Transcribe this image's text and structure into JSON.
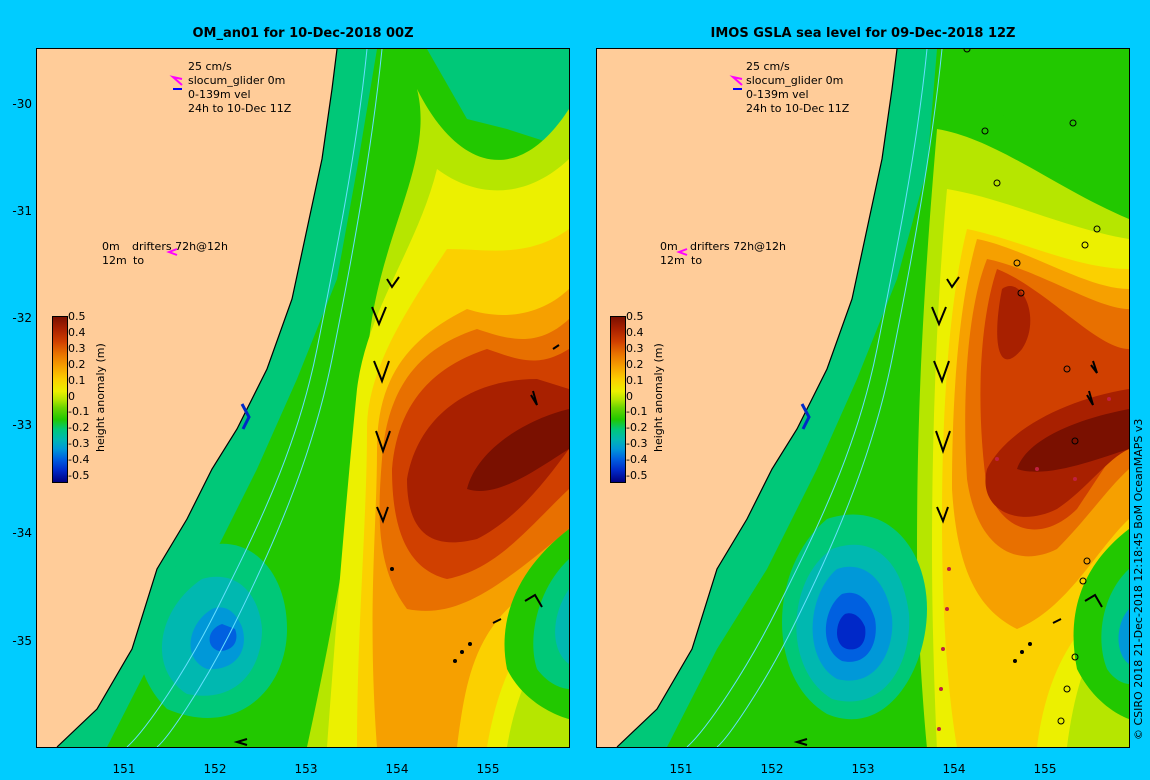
{
  "panels": [
    {
      "title": "OM_an01 for 10-Dec-2018 00Z",
      "legend": {
        "scale": "25 cm/s",
        "glider": "slocum_glider 0m",
        "vel": "0-139m vel",
        "window": "24h to 10-Dec 11Z",
        "drifter_top": "0m",
        "drifter_label": "drifters 72h@12h",
        "drifter_bottom": "12m",
        "drifter_to": "to"
      }
    },
    {
      "title": "IMOS GSLA sea level  for 09-Dec-2018 12Z",
      "legend": {
        "scale": "25 cm/s",
        "glider": "slocum_glider 0m",
        "vel": "0-139m vel",
        "window": "24h to 10-Dec 11Z",
        "drifter_top": "0m",
        "drifter_label": "drifters 72h@12h",
        "drifter_bottom": "12m",
        "drifter_to": "to"
      }
    }
  ],
  "y_ticks": [
    "-30",
    "-31",
    "-32",
    "-33",
    "-34",
    "-35"
  ],
  "x_ticks": [
    "151",
    "152",
    "153",
    "154",
    "155"
  ],
  "colorbar": {
    "label": "height anomaly (m)",
    "ticks": [
      "0.5",
      "0.4",
      "0.3",
      "0.2",
      "0.1",
      "0",
      "-0.1",
      "-0.2",
      "-0.3",
      "-0.4",
      "-0.5"
    ],
    "colors": [
      "#7a1000",
      "#a82000",
      "#d04000",
      "#e87000",
      "#f6a000",
      "#fbd000",
      "#ecf000",
      "#b6e600",
      "#6cd400",
      "#22c800",
      "#00c878",
      "#00b8b0",
      "#0098d8",
      "#0060e0",
      "#0028c8",
      "#000080"
    ]
  },
  "credit": "© CSIRO 2018  21-Dec-2018 12:18:45 BoM OceanMAPS v3"
}
